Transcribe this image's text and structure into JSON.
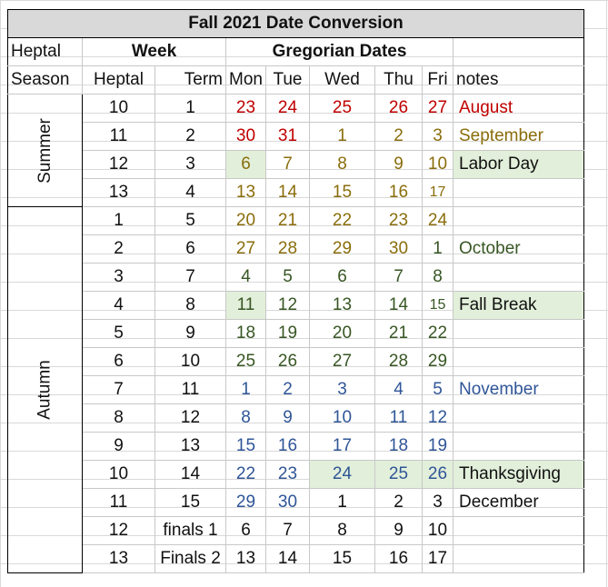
{
  "title": "Fall 2021 Date Conversion",
  "headers": {
    "heptal": "Heptal",
    "week": "Week",
    "gregorian": "Gregorian Dates",
    "season": "Season",
    "heptal2": "Heptal",
    "term": "Term",
    "mon": "Mon",
    "tue": "Tue",
    "wed": "Wed",
    "thu": "Thu",
    "fri": "Fri",
    "notes": "notes"
  },
  "seasons": {
    "summer": "Summer",
    "autumn": "Autumn"
  },
  "colors": {
    "august": "#c00000",
    "september": "#8a6d0b",
    "october": "#375623",
    "november": "#2f5597",
    "december": "#111111",
    "highlight": "#e2efda"
  },
  "rows": [
    {
      "heptal": "10",
      "term": "1",
      "days": [
        "23",
        "24",
        "25",
        "26",
        "27"
      ],
      "note": "August"
    },
    {
      "heptal": "11",
      "term": "2",
      "days": [
        "30",
        "31",
        "1",
        "2",
        "3"
      ],
      "note": "September"
    },
    {
      "heptal": "12",
      "term": "3",
      "days": [
        "6",
        "7",
        "8",
        "9",
        "10"
      ],
      "note": "Labor Day"
    },
    {
      "heptal": "13",
      "term": "4",
      "days": [
        "13",
        "14",
        "15",
        "16",
        "17"
      ],
      "note": ""
    },
    {
      "heptal": "1",
      "term": "5",
      "days": [
        "20",
        "21",
        "22",
        "23",
        "24"
      ],
      "note": ""
    },
    {
      "heptal": "2",
      "term": "6",
      "days": [
        "27",
        "28",
        "29",
        "30",
        "1"
      ],
      "note": "October"
    },
    {
      "heptal": "3",
      "term": "7",
      "days": [
        "4",
        "5",
        "6",
        "7",
        "8"
      ],
      "note": ""
    },
    {
      "heptal": "4",
      "term": "8",
      "days": [
        "11",
        "12",
        "13",
        "14",
        "15"
      ],
      "note": "Fall Break"
    },
    {
      "heptal": "5",
      "term": "9",
      "days": [
        "18",
        "19",
        "20",
        "21",
        "22"
      ],
      "note": ""
    },
    {
      "heptal": "6",
      "term": "10",
      "days": [
        "25",
        "26",
        "27",
        "28",
        "29"
      ],
      "note": ""
    },
    {
      "heptal": "7",
      "term": "11",
      "days": [
        "1",
        "2",
        "3",
        "4",
        "5"
      ],
      "note": "November"
    },
    {
      "heptal": "8",
      "term": "12",
      "days": [
        "8",
        "9",
        "10",
        "11",
        "12"
      ],
      "note": ""
    },
    {
      "heptal": "9",
      "term": "13",
      "days": [
        "15",
        "16",
        "17",
        "18",
        "19"
      ],
      "note": ""
    },
    {
      "heptal": "10",
      "term": "14",
      "days": [
        "22",
        "23",
        "24",
        "25",
        "26"
      ],
      "note": "Thanksgiving"
    },
    {
      "heptal": "11",
      "term": "15",
      "days": [
        "29",
        "30",
        "1",
        "2",
        "3"
      ],
      "note": "December"
    },
    {
      "heptal": "12",
      "term": "finals 1",
      "days": [
        "6",
        "7",
        "8",
        "9",
        "10"
      ],
      "note": ""
    },
    {
      "heptal": "13",
      "term": "Finals 2",
      "days": [
        "13",
        "14",
        "15",
        "16",
        "17"
      ],
      "note": ""
    }
  ]
}
